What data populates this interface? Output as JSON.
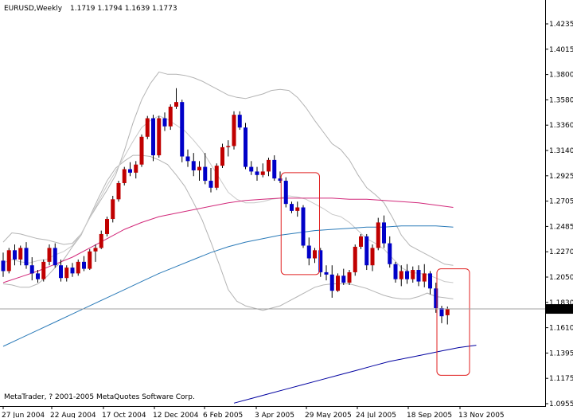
{
  "header": {
    "symbol": "EURUSD,Weekly",
    "ohlc": "1.1719 1.1794 1.1639 1.1773"
  },
  "footer": {
    "copyright": "MetaTrader, ? 2001-2005 MetaQuotes Software Corp."
  },
  "current_price_label": "1.1773",
  "colors": {
    "bull": "#c00000",
    "bear": "#0000c8",
    "wick": "#000000",
    "band": "#b4b4b4",
    "ma_pink": "#d2287a",
    "ma_steel": "#2a7ab8",
    "ma_navy": "#0000a0",
    "highlight": "#e02020",
    "grid": "#c0c0c0"
  },
  "chart_data": {
    "type": "candlestick",
    "y_ticks": [
      "1.4235",
      "1.4015",
      "1.3800",
      "1.3580",
      "1.3360",
      "1.3140",
      "1.2925",
      "1.2705",
      "1.2485",
      "1.2270",
      "1.2050",
      "1.1830",
      "1.1610",
      "1.1395",
      "1.1175",
      "1.0955"
    ],
    "x_ticks": [
      "27 Jun 2004",
      "22 Aug 2004",
      "17 Oct 2004",
      "12 Dec 2004",
      "6 Feb 2005",
      "3 Apr 2005",
      "29 May 2005",
      "24 Jul 2005",
      "18 Sep 2005",
      "13 Nov 2005"
    ],
    "ylim": [
      1.0955,
      1.4235
    ],
    "candles": [
      [
        1.219,
        1.226,
        1.205,
        1.21
      ],
      [
        1.21,
        1.23,
        1.208,
        1.228
      ],
      [
        1.228,
        1.233,
        1.215,
        1.22
      ],
      [
        1.22,
        1.232,
        1.215,
        1.23
      ],
      [
        1.23,
        1.235,
        1.212,
        1.215
      ],
      [
        1.215,
        1.222,
        1.202,
        1.208
      ],
      [
        1.208,
        1.211,
        1.2,
        1.203
      ],
      [
        1.203,
        1.22,
        1.201,
        1.218
      ],
      [
        1.218,
        1.233,
        1.215,
        1.23
      ],
      [
        1.23,
        1.234,
        1.213,
        1.215
      ],
      [
        1.215,
        1.22,
        1.201,
        1.204
      ],
      [
        1.204,
        1.215,
        1.201,
        1.213
      ],
      [
        1.213,
        1.217,
        1.205,
        1.208
      ],
      [
        1.208,
        1.22,
        1.206,
        1.218
      ],
      [
        1.218,
        1.223,
        1.21,
        1.212
      ],
      [
        1.212,
        1.229,
        1.211,
        1.227
      ],
      [
        1.227,
        1.233,
        1.218,
        1.23
      ],
      [
        1.23,
        1.245,
        1.229,
        1.242
      ],
      [
        1.242,
        1.257,
        1.24,
        1.255
      ],
      [
        1.255,
        1.275,
        1.252,
        1.272
      ],
      [
        1.272,
        1.288,
        1.27,
        1.286
      ],
      [
        1.286,
        1.3,
        1.284,
        1.298
      ],
      [
        1.298,
        1.304,
        1.292,
        1.295
      ],
      [
        1.295,
        1.305,
        1.29,
        1.302
      ],
      [
        1.302,
        1.328,
        1.3,
        1.326
      ],
      [
        1.326,
        1.344,
        1.324,
        1.342
      ],
      [
        1.342,
        1.345,
        1.305,
        1.31
      ],
      [
        1.31,
        1.344,
        1.308,
        1.342
      ],
      [
        1.342,
        1.347,
        1.331,
        1.335
      ],
      [
        1.335,
        1.354,
        1.332,
        1.352
      ],
      [
        1.352,
        1.368,
        1.35,
        1.356
      ],
      [
        1.356,
        1.358,
        1.304,
        1.309
      ],
      [
        1.309,
        1.315,
        1.3,
        1.305
      ],
      [
        1.305,
        1.312,
        1.292,
        1.297
      ],
      [
        1.297,
        1.305,
        1.288,
        1.3
      ],
      [
        1.3,
        1.312,
        1.285,
        1.288
      ],
      [
        1.288,
        1.299,
        1.278,
        1.282
      ],
      [
        1.282,
        1.303,
        1.28,
        1.301
      ],
      [
        1.301,
        1.32,
        1.299,
        1.317
      ],
      [
        1.317,
        1.323,
        1.309,
        1.318
      ],
      [
        1.318,
        1.348,
        1.315,
        1.345
      ],
      [
        1.345,
        1.348,
        1.332,
        1.334
      ],
      [
        1.334,
        1.338,
        1.298,
        1.3
      ],
      [
        1.3,
        1.305,
        1.293,
        1.296
      ],
      [
        1.296,
        1.3,
        1.288,
        1.293
      ],
      [
        1.293,
        1.303,
        1.291,
        1.296
      ],
      [
        1.296,
        1.308,
        1.292,
        1.306
      ],
      [
        1.306,
        1.31,
        1.288,
        1.29
      ],
      [
        1.29,
        1.296,
        1.286,
        1.288
      ],
      [
        1.288,
        1.291,
        1.265,
        1.268
      ],
      [
        1.268,
        1.27,
        1.26,
        1.262
      ],
      [
        1.262,
        1.27,
        1.257,
        1.265
      ],
      [
        1.265,
        1.267,
        1.23,
        1.232
      ],
      [
        1.232,
        1.239,
        1.215,
        1.221
      ],
      [
        1.221,
        1.23,
        1.217,
        1.228
      ],
      [
        1.228,
        1.23,
        1.205,
        1.209
      ],
      [
        1.209,
        1.215,
        1.202,
        1.207
      ],
      [
        1.207,
        1.215,
        1.187,
        1.193
      ],
      [
        1.193,
        1.208,
        1.192,
        1.206
      ],
      [
        1.206,
        1.212,
        1.198,
        1.2
      ],
      [
        1.2,
        1.211,
        1.198,
        1.209
      ],
      [
        1.209,
        1.233,
        1.206,
        1.231
      ],
      [
        1.231,
        1.242,
        1.229,
        1.24
      ],
      [
        1.24,
        1.242,
        1.211,
        1.215
      ],
      [
        1.215,
        1.233,
        1.21,
        1.23
      ],
      [
        1.23,
        1.256,
        1.228,
        1.252
      ],
      [
        1.252,
        1.258,
        1.23,
        1.234
      ],
      [
        1.234,
        1.24,
        1.213,
        1.216
      ],
      [
        1.216,
        1.218,
        1.2,
        1.203
      ],
      [
        1.203,
        1.215,
        1.197,
        1.21
      ],
      [
        1.21,
        1.216,
        1.199,
        1.203
      ],
      [
        1.203,
        1.214,
        1.2,
        1.211
      ],
      [
        1.211,
        1.215,
        1.197,
        1.201
      ],
      [
        1.201,
        1.216,
        1.196,
        1.208
      ],
      [
        1.208,
        1.21,
        1.19,
        1.195
      ],
      [
        1.195,
        1.2,
        1.174,
        1.178
      ],
      [
        1.178,
        1.18,
        1.165,
        1.171
      ],
      [
        1.1719,
        1.1794,
        1.1639,
        1.1773
      ]
    ],
    "bands_upper": [
      1.235,
      1.243,
      1.242,
      1.24,
      1.238,
      1.237,
      1.235,
      1.233,
      1.234,
      1.242,
      1.256,
      1.268,
      1.28,
      1.293,
      1.314,
      1.338,
      1.358,
      1.372,
      1.382,
      1.38,
      1.38,
      1.379,
      1.377,
      1.374,
      1.37,
      1.366,
      1.362,
      1.36,
      1.359,
      1.361,
      1.363,
      1.366,
      1.367,
      1.366,
      1.36,
      1.351,
      1.34,
      1.33,
      1.32,
      1.315,
      1.306,
      1.293,
      1.282,
      1.276,
      1.269,
      1.256,
      1.241,
      1.232,
      1.228,
      1.224,
      1.22,
      1.216,
      1.215
    ],
    "bands_lower": [
      1.199,
      1.198,
      1.196,
      1.196,
      1.199,
      1.205,
      1.213,
      1.22,
      1.231,
      1.241,
      1.257,
      1.273,
      1.288,
      1.299,
      1.305,
      1.31,
      1.31,
      1.309,
      1.306,
      1.302,
      1.293,
      1.283,
      1.269,
      1.254,
      1.235,
      1.215,
      1.194,
      1.184,
      1.18,
      1.178,
      1.176,
      1.178,
      1.18,
      1.184,
      1.188,
      1.192,
      1.196,
      1.198,
      1.199,
      1.199,
      1.199,
      1.197,
      1.195,
      1.192,
      1.189,
      1.187,
      1.186,
      1.186,
      1.188,
      1.191,
      1.188,
      1.187,
      1.186
    ],
    "bands_mid": [
      1.217,
      1.22,
      1.218,
      1.217,
      1.219,
      1.22,
      1.224,
      1.227,
      1.232,
      1.242,
      1.256,
      1.27,
      1.284,
      1.296,
      1.309,
      1.322,
      1.334,
      1.34,
      1.344,
      1.341,
      1.336,
      1.331,
      1.323,
      1.314,
      1.302,
      1.29,
      1.278,
      1.272,
      1.269,
      1.269,
      1.27,
      1.272,
      1.273,
      1.275,
      1.274,
      1.272,
      1.268,
      1.264,
      1.259,
      1.257,
      1.252,
      1.245,
      1.238,
      1.234,
      1.229,
      1.221,
      1.213,
      1.209,
      1.208,
      1.207,
      1.204,
      1.201,
      1.2
    ],
    "ma_pink": [
      1.2,
      1.205,
      1.21,
      1.216,
      1.222,
      1.23,
      1.238,
      1.246,
      1.252,
      1.257,
      1.26,
      1.263,
      1.266,
      1.269,
      1.271,
      1.272,
      1.273,
      1.273,
      1.273,
      1.273,
      1.272,
      1.272,
      1.271,
      1.27,
      1.269,
      1.267,
      1.265
    ],
    "ma_steel": [
      1.145,
      1.152,
      1.159,
      1.166,
      1.173,
      1.18,
      1.187,
      1.194,
      1.201,
      1.208,
      1.214,
      1.22,
      1.226,
      1.231,
      1.235,
      1.238,
      1.241,
      1.243,
      1.245,
      1.246,
      1.247,
      1.248,
      1.248,
      1.249,
      1.249,
      1.249,
      1.248
    ],
    "ma_navy": [
      1.096,
      1.1,
      1.104,
      1.108,
      1.112,
      1.116,
      1.12,
      1.124,
      1.128,
      1.132,
      1.135,
      1.138,
      1.141,
      1.144,
      1.146
    ],
    "highlight_boxes": [
      {
        "from_candle": 49,
        "to_candle": 54,
        "top": 1.295,
        "bottom": 1.207
      },
      {
        "from_candle": 76,
        "to_candle": 80,
        "top": 1.212,
        "bottom": 1.12
      }
    ]
  }
}
